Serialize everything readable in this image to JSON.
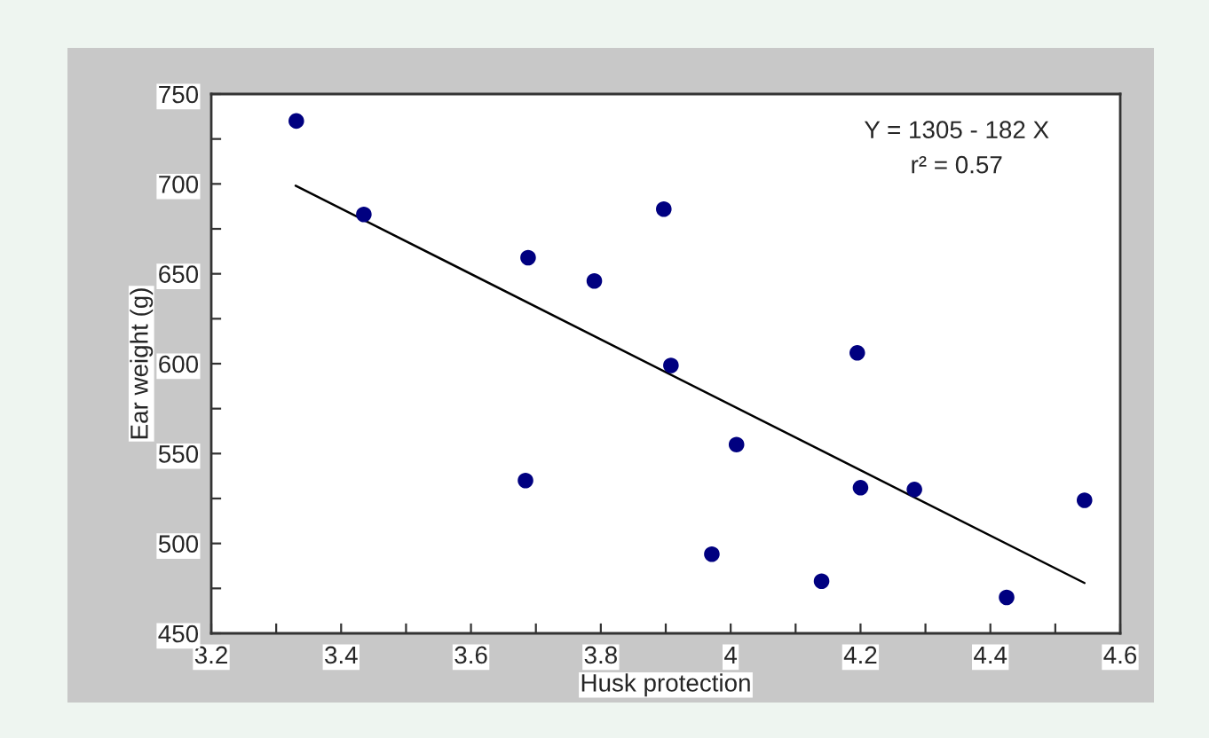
{
  "chart_data": {
    "type": "scatter",
    "xlabel": "Husk protection",
    "ylabel": "Ear weight (g)",
    "annotations": [
      "Y = 1305 - 182 X",
      "r² = 0.57"
    ],
    "series": [
      {
        "marker": "circle",
        "color": "#000080",
        "x": [
          3.331,
          3.435,
          3.684,
          3.688,
          3.79,
          3.897,
          3.908,
          4.009,
          3.971,
          4.14,
          4.195,
          4.2,
          4.283,
          4.425,
          4.545
        ],
        "values": [
          735,
          683,
          535,
          659,
          646,
          686,
          599,
          555,
          494,
          479,
          606,
          531,
          530,
          470,
          524
        ]
      },
      {
        "type": "line",
        "color": "#000000",
        "x": [
          3.33,
          4.545
        ],
        "values": [
          699,
          478
        ]
      }
    ],
    "xlim": [
      3.2,
      4.6
    ],
    "ylim": [
      450,
      750
    ],
    "xticks": [
      3.2,
      {
        "value": 3.3,
        "label": null
      },
      3.4,
      {
        "value": 3.5,
        "label": null
      },
      3.6,
      {
        "value": 3.7,
        "label": null
      },
      3.8,
      {
        "value": 3.9,
        "label": null
      },
      {
        "value": 4.0,
        "label": "4"
      },
      {
        "value": 4.1,
        "label": null
      },
      4.2,
      {
        "value": 4.3,
        "label": null
      },
      4.4,
      {
        "value": 4.5,
        "label": null
      },
      4.6
    ],
    "yticks": [
      450,
      {
        "value": 475,
        "label": null
      },
      500,
      {
        "value": 525,
        "label": null
      },
      550,
      {
        "value": 575,
        "label": null
      },
      600,
      {
        "value": 625,
        "label": null
      },
      650,
      {
        "value": 675,
        "label": null
      },
      700,
      {
        "value": 725,
        "label": null
      },
      750
    ],
    "grid": false,
    "legend": false
  }
}
